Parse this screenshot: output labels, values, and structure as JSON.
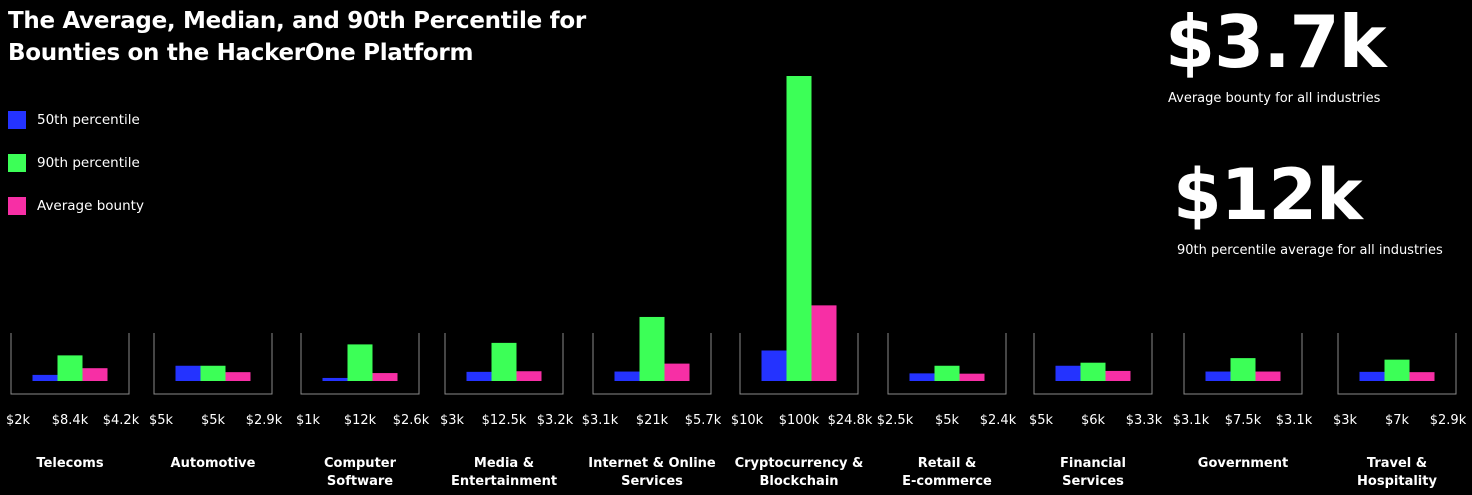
{
  "title_lines": [
    "The Average, Median, and 90th Percentile for",
    "Bounties on the HackerOne Platform"
  ],
  "legend": [
    {
      "label": "50th percentile",
      "color": "#2433ff"
    },
    {
      "label": "90th percentile",
      "color": "#3cff57"
    },
    {
      "label": "Average bounty",
      "color": "#f72fa5"
    }
  ],
  "stats": [
    {
      "value": "$3.7k",
      "caption": "Average bounty for all industries"
    },
    {
      "value": "$12k",
      "caption": "90th percentile average for all industries"
    }
  ],
  "chart_data": {
    "type": "bar",
    "title": "The Average, Median, and 90th Percentile for Bounties on the HackerOne Platform",
    "categories": [
      [
        "Telecoms"
      ],
      [
        "Automotive"
      ],
      [
        "Computer",
        "Software"
      ],
      [
        "Media &",
        "Entertainment"
      ],
      [
        "Internet & Online",
        "Services"
      ],
      [
        "Cryptocurrency &",
        "Blockchain"
      ],
      [
        "Retail &",
        "E-commerce"
      ],
      [
        "Financial",
        "Services"
      ],
      [
        "Government"
      ],
      [
        "Travel &",
        "Hospitality"
      ]
    ],
    "series": [
      {
        "name": "50th percentile",
        "color": "#2433ff",
        "values": [
          2000,
          5000,
          1000,
          3000,
          3100,
          10000,
          2500,
          5000,
          3100,
          3000
        ]
      },
      {
        "name": "90th percentile",
        "color": "#3cff57",
        "values": [
          8400,
          5000,
          12000,
          12500,
          21000,
          100000,
          5000,
          6000,
          7500,
          7000
        ]
      },
      {
        "name": "Average bounty",
        "color": "#f72fa5",
        "values": [
          4200,
          2900,
          2600,
          3200,
          5700,
          24800,
          2400,
          3300,
          3100,
          2900
        ]
      }
    ],
    "labels": [
      [
        "$2k",
        "$8.4k",
        "$4.2k"
      ],
      [
        "$5k",
        "$5k",
        "$2.9k"
      ],
      [
        "$1k",
        "$12k",
        "$2.6k"
      ],
      [
        "$3k",
        "$12.5k",
        "$3.2k"
      ],
      [
        "$3.1k",
        "$21k",
        "$5.7k"
      ],
      [
        "$10k",
        "$100k",
        "$24.8k"
      ],
      [
        "$2.5k",
        "$5k",
        "$2.4k"
      ],
      [
        "$5k",
        "$6k",
        "$3.3k"
      ],
      [
        "$3.1k",
        "$7.5k",
        "$3.1k"
      ],
      [
        "$3k",
        "$7k",
        "$2.9k"
      ]
    ],
    "ylim": [
      0,
      100000
    ]
  }
}
